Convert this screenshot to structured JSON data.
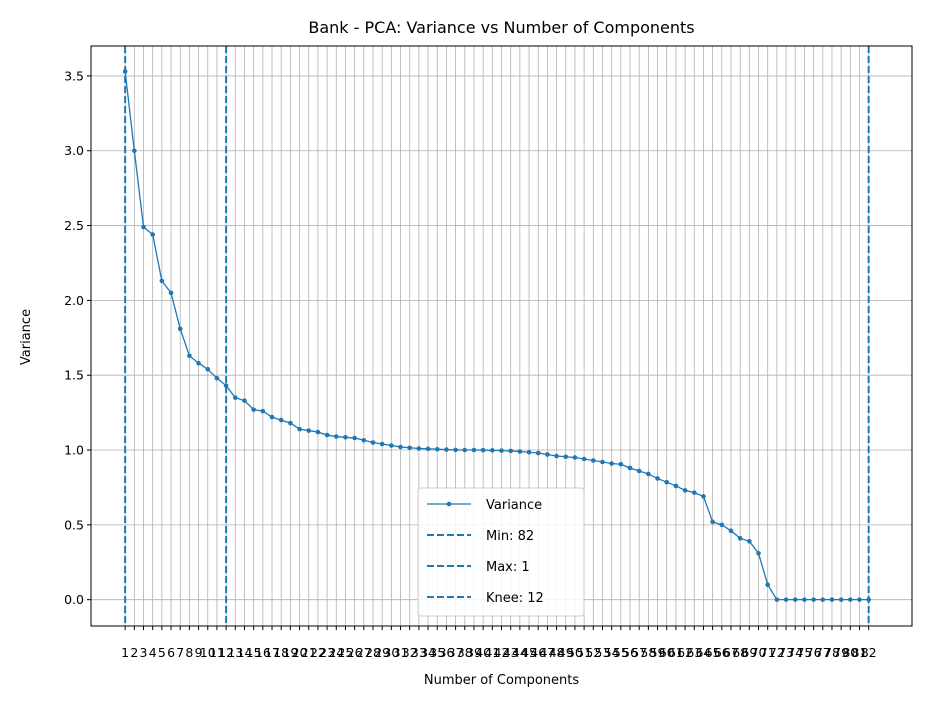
{
  "chart_data": {
    "type": "line",
    "title": "Bank - PCA: Variance vs Number of Components",
    "xlabel": "Number of Components",
    "ylabel": "Variance",
    "xlim": [
      -2.72,
      86.72
    ],
    "ylim": [
      -0.176,
      3.7
    ],
    "yticks": [
      0.0,
      0.5,
      1.0,
      1.5,
      2.0,
      2.5,
      3.0,
      3.5
    ],
    "ytick_labels": [
      "0.0",
      "0.5",
      "1.0",
      "1.5",
      "2.0",
      "2.5",
      "3.0",
      "3.5"
    ],
    "x": [
      1,
      2,
      3,
      4,
      5,
      6,
      7,
      8,
      9,
      10,
      11,
      12,
      13,
      14,
      15,
      16,
      17,
      18,
      19,
      20,
      21,
      22,
      23,
      24,
      25,
      26,
      27,
      28,
      29,
      30,
      31,
      32,
      33,
      34,
      35,
      36,
      37,
      38,
      39,
      40,
      41,
      42,
      43,
      44,
      45,
      46,
      47,
      48,
      49,
      50,
      51,
      52,
      53,
      54,
      55,
      56,
      57,
      58,
      59,
      60,
      61,
      62,
      63,
      64,
      65,
      66,
      67,
      68,
      69,
      70,
      71,
      72,
      73,
      74,
      75,
      76,
      77,
      78,
      79,
      80,
      81,
      82
    ],
    "xtick_labels": [
      "1",
      "2",
      "3",
      "4",
      "5",
      "6",
      "7",
      "8",
      "9",
      "10",
      "11",
      "12",
      "13",
      "14",
      "15",
      "16",
      "17",
      "18",
      "19",
      "20",
      "21",
      "22",
      "23",
      "24",
      "25",
      "26",
      "27",
      "28",
      "29",
      "30",
      "31",
      "32",
      "33",
      "34",
      "35",
      "36",
      "37",
      "38",
      "39",
      "40",
      "41",
      "42",
      "43",
      "44",
      "45",
      "46",
      "47",
      "48",
      "49",
      "50",
      "51",
      "52",
      "53",
      "54",
      "55",
      "56",
      "57",
      "58",
      "59",
      "60",
      "61",
      "62",
      "63",
      "64",
      "65",
      "66",
      "67",
      "68",
      "69",
      "70",
      "71",
      "72",
      "73",
      "74",
      "75",
      "76",
      "77",
      "78",
      "79",
      "80",
      "81",
      "82"
    ],
    "series": [
      {
        "name": "Variance",
        "color": "#1f77b4",
        "values": [
          3.53,
          3.0,
          2.49,
          2.44,
          2.13,
          2.05,
          1.81,
          1.63,
          1.58,
          1.54,
          1.48,
          1.43,
          1.35,
          1.33,
          1.27,
          1.26,
          1.22,
          1.2,
          1.18,
          1.14,
          1.13,
          1.12,
          1.1,
          1.09,
          1.085,
          1.08,
          1.065,
          1.05,
          1.04,
          1.03,
          1.02,
          1.015,
          1.01,
          1.008,
          1.005,
          1.003,
          1.001,
          1.0,
          1.0,
          0.999,
          0.998,
          0.996,
          0.994,
          0.99,
          0.985,
          0.98,
          0.97,
          0.96,
          0.955,
          0.95,
          0.94,
          0.93,
          0.92,
          0.91,
          0.905,
          0.88,
          0.86,
          0.84,
          0.81,
          0.785,
          0.76,
          0.73,
          0.715,
          0.69,
          0.52,
          0.5,
          0.46,
          0.41,
          0.39,
          0.31,
          0.1,
          0.0,
          0.0,
          0.0,
          0.0,
          0.0,
          0.0,
          0.0,
          0.0,
          0.0,
          0.0,
          0.0
        ]
      }
    ],
    "vlines": [
      {
        "name": "Min: 82",
        "x": 82,
        "color": "#1f77b4"
      },
      {
        "name": "Max: 1",
        "x": 1,
        "color": "#1f77b4"
      },
      {
        "name": "Knee: 12",
        "x": 12,
        "color": "#1f77b4"
      }
    ],
    "grid": true,
    "legend_position": "lower center"
  }
}
